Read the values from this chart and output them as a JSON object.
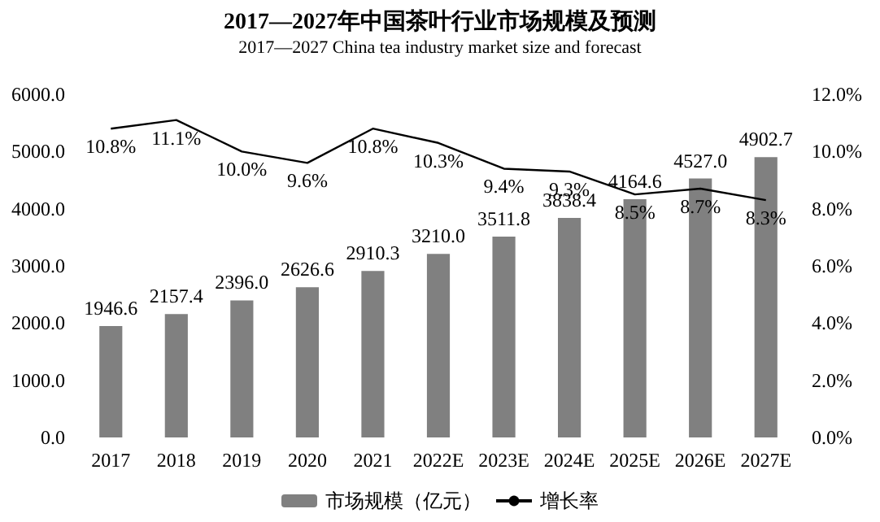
{
  "chart_data": {
    "type": "bar",
    "title": "2017—2027年中国茶叶行业市场规模及预测",
    "subtitle": "2017—2027 China tea industry market size and forecast",
    "categories": [
      "2017",
      "2018",
      "2019",
      "2020",
      "2021",
      "2022E",
      "2023E",
      "2024E",
      "2025E",
      "2026E",
      "2027E"
    ],
    "series": [
      {
        "name": "市场规模（亿元）",
        "color": "#808080",
        "values": [
          1946.6,
          2157.4,
          2396.0,
          2626.6,
          2910.3,
          3210.0,
          3511.8,
          3838.4,
          4164.6,
          4527.0,
          4902.7
        ],
        "value_labels": [
          "1946.6",
          "2157.4",
          "2396.0",
          "2626.6",
          "2910.3",
          "3210.0",
          "3511.8",
          "3838.4",
          "4164.6",
          "4527.0",
          "4902.7"
        ]
      },
      {
        "name": "增长率",
        "type": "line",
        "axis": "y2",
        "color": "#000000",
        "values": [
          10.8,
          11.1,
          10.0,
          9.6,
          10.8,
          10.3,
          9.4,
          9.3,
          8.5,
          8.7,
          8.3
        ],
        "value_labels": [
          "10.8%",
          "11.1%",
          "10.0%",
          "9.6%",
          "10.8%",
          "10.3%",
          "9.4%",
          "9.3%",
          "8.5%",
          "8.7%",
          "8.3%"
        ]
      }
    ],
    "ylim": [
      0,
      6000
    ],
    "yticks": [
      {
        "value": 0,
        "label": "0.0"
      },
      {
        "value": 1000,
        "label": "1000.0"
      },
      {
        "value": 2000,
        "label": "2000.0"
      },
      {
        "value": 3000,
        "label": "3000.0"
      },
      {
        "value": 4000,
        "label": "4000.0"
      },
      {
        "value": 5000,
        "label": "5000.0"
      },
      {
        "value": 6000,
        "label": "6000.0"
      }
    ],
    "y2lim": [
      0,
      12
    ],
    "y2ticks": [
      {
        "value": 0,
        "label": "0.0%"
      },
      {
        "value": 2,
        "label": "2.0%"
      },
      {
        "value": 4,
        "label": "4.0%"
      },
      {
        "value": 6,
        "label": "6.0%"
      },
      {
        "value": 8,
        "label": "8.0%"
      },
      {
        "value": 10,
        "label": "10.0%"
      },
      {
        "value": 12,
        "label": "12.0%"
      }
    ],
    "grid": false,
    "legend": "bottom",
    "marker": "none",
    "line_style": "solid"
  }
}
